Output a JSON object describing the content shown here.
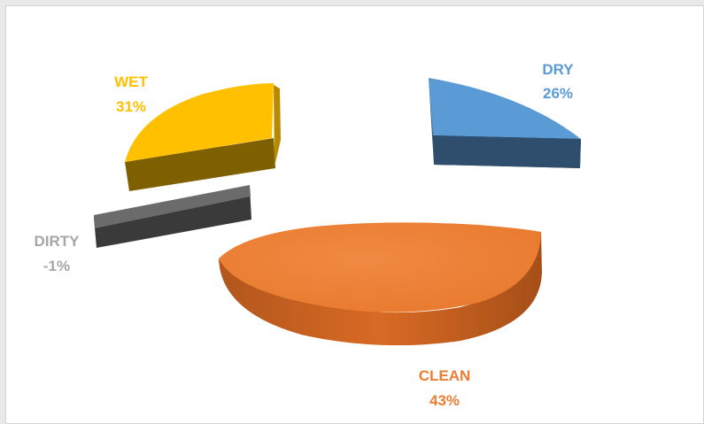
{
  "chart_data": {
    "type": "pie",
    "style": "3d-exploded",
    "title": "",
    "legend": "none",
    "slices": [
      {
        "label": "WET",
        "value": 31,
        "display": "31%",
        "color": "#ffc000"
      },
      {
        "label": "DRY",
        "value": 26,
        "display": "26%",
        "color": "#5b9bd5"
      },
      {
        "label": "CLEAN",
        "value": 43,
        "display": "43%",
        "color": "#ed7d31"
      },
      {
        "label": "DIRTY",
        "value": -1,
        "display": "-1%",
        "color": "#595959"
      }
    ]
  }
}
